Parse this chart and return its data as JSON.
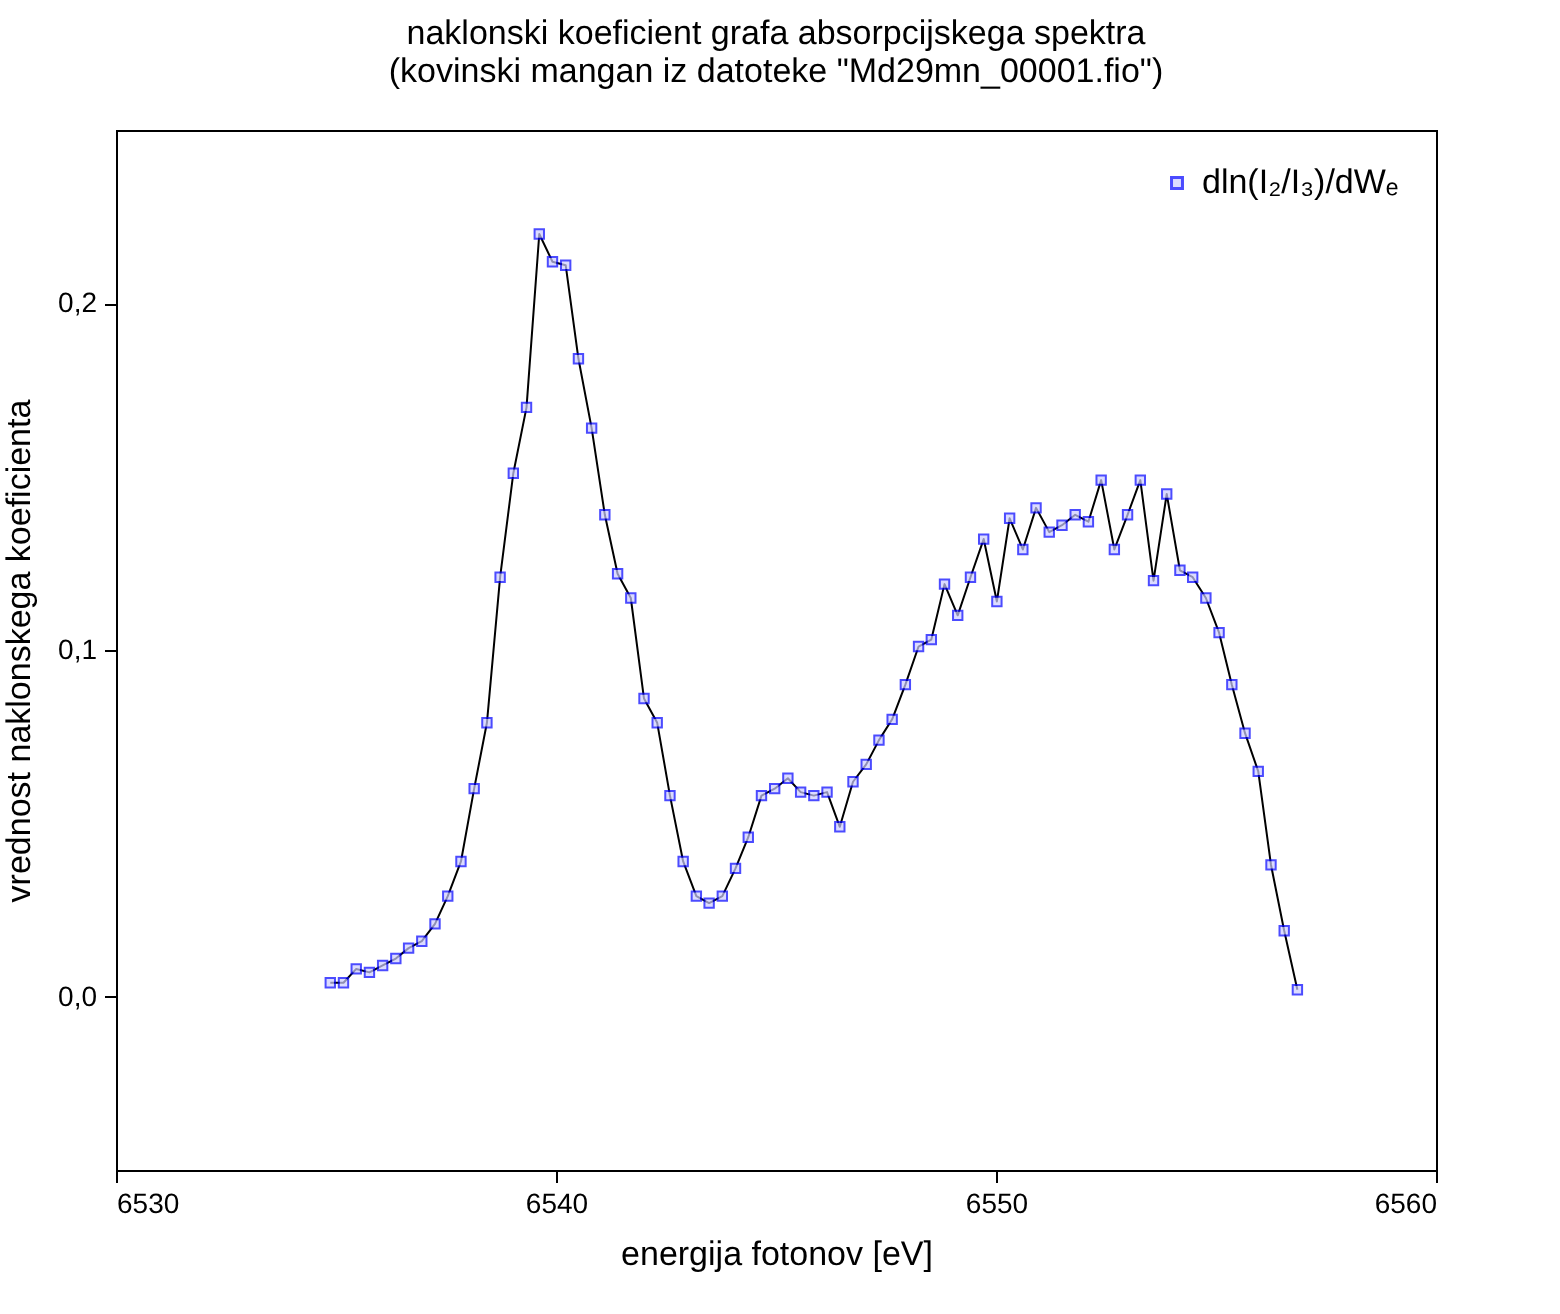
{
  "chart_data": {
    "type": "line",
    "title": [
      "naklonski koeficient grafa absorpcijskega spektra",
      "(kovinski mangan iz datoteke \"Md29mn_00001.fio\")"
    ],
    "xlabel": "energija fotonov [eV]",
    "ylabel": "vrednost naklonskega koeficienta",
    "xlim": [
      6530,
      6560
    ],
    "xticks": [
      6530,
      6540,
      6550,
      6560
    ],
    "ylim": [
      -0.05,
      0.25
    ],
    "yticks": [
      {
        "value": 0,
        "label": "0,0"
      },
      {
        "value": 0.1,
        "label": "0,1"
      },
      {
        "value": 0.2,
        "label": "0,2"
      }
    ],
    "grid": false,
    "legend": "top right",
    "marker": "square",
    "line_style": "solid",
    "series": [
      {
        "name": "dln(I₂/I₃)/dWₑ",
        "color": "#0000ff",
        "x": [
          6534.87,
          6535.17,
          6535.46,
          6535.76,
          6536.06,
          6536.36,
          6536.65,
          6536.95,
          6537.25,
          6537.54,
          6537.84,
          6538.14,
          6538.43,
          6538.73,
          6539.03,
          6539.33,
          6539.62,
          6539.92,
          6540.22,
          6540.51,
          6540.81,
          6541.11,
          6541.4,
          6541.7,
          6542.0,
          6542.3,
          6542.59,
          6542.89,
          6543.19,
          6543.48,
          6543.78,
          6544.08,
          6544.37,
          6544.67,
          6544.97,
          6545.27,
          6545.56,
          6545.86,
          6546.16,
          6546.45,
          6546.75,
          6547.05,
          6547.34,
          6547.64,
          6547.94,
          6548.24,
          6548.53,
          6548.83,
          6549.13,
          6549.42,
          6549.72,
          6550.02,
          6550.31,
          6550.61,
          6550.91,
          6551.21,
          6551.5,
          6551.8,
          6552.1,
          6552.39,
          6552.69,
          6552.99,
          6553.28,
          6553.58,
          6553.88,
          6554.18,
          6554.47,
          6554.77,
          6555.07,
          6555.36,
          6555.66,
          6555.96,
          6556.25,
          6556.55,
          6556.85
        ],
        "values": [
          0.004,
          0.004,
          0.008,
          0.007,
          0.009,
          0.011,
          0.014,
          0.016,
          0.021,
          0.029,
          0.039,
          0.06,
          0.079,
          0.121,
          0.151,
          0.17,
          0.22,
          0.212,
          0.211,
          0.184,
          0.164,
          0.139,
          0.122,
          0.115,
          0.086,
          0.079,
          0.058,
          0.039,
          0.029,
          0.027,
          0.029,
          0.037,
          0.046,
          0.058,
          0.06,
          0.063,
          0.059,
          0.058,
          0.059,
          0.049,
          0.062,
          0.067,
          0.074,
          0.08,
          0.09,
          0.101,
          0.103,
          0.119,
          0.11,
          0.121,
          0.132,
          0.114,
          0.138,
          0.129,
          0.141,
          0.134,
          0.136,
          0.139,
          0.137,
          0.149,
          0.129,
          0.139,
          0.149,
          0.12,
          0.145,
          0.123,
          0.121,
          0.115,
          0.105,
          0.09,
          0.076,
          0.065,
          0.038,
          0.019,
          0.002
        ]
      }
    ]
  }
}
